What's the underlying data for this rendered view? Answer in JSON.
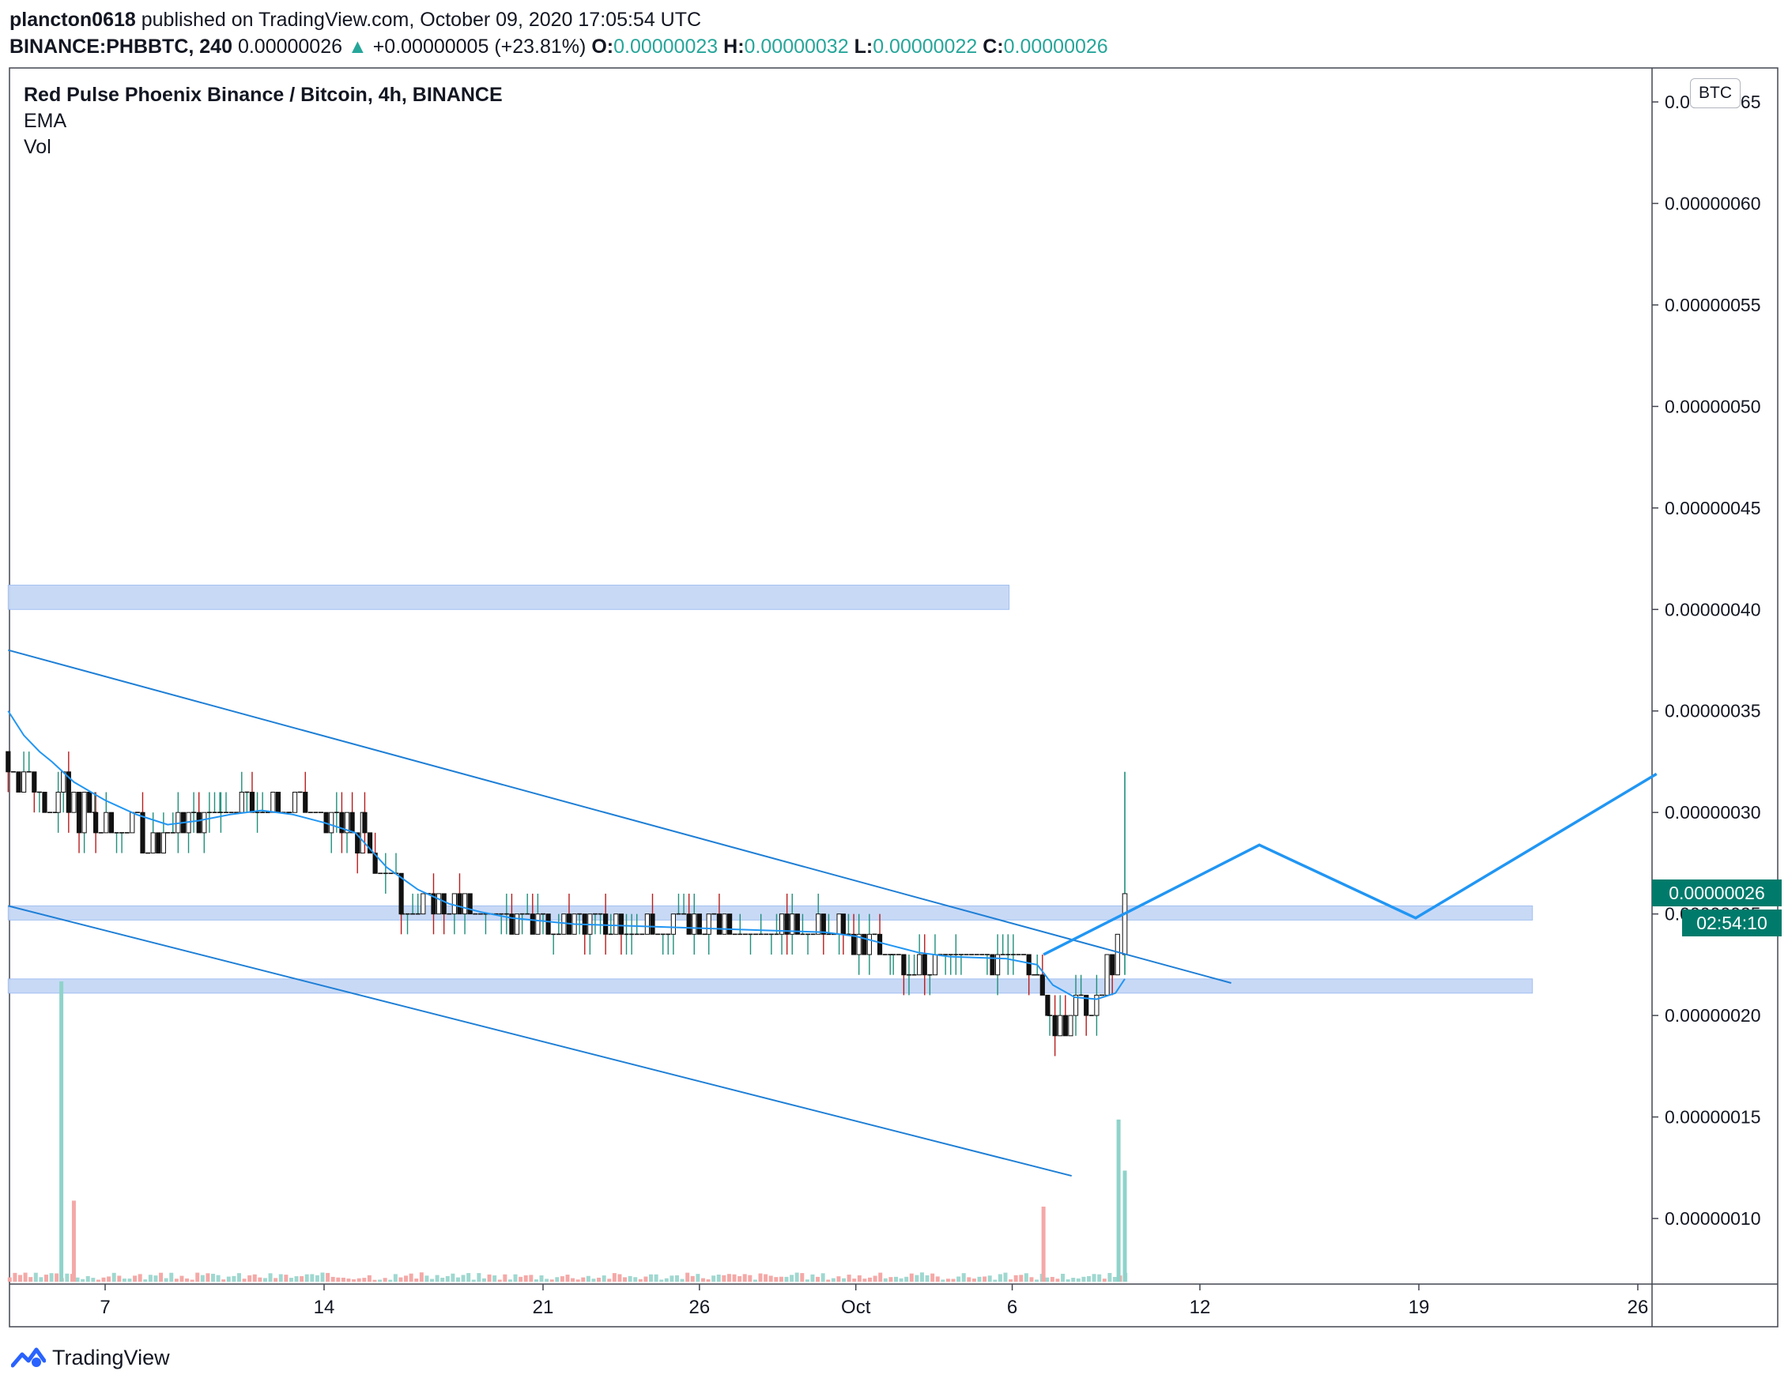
{
  "header": {
    "publisher": "plancton0618",
    "published_text": "published on TradingView.com, October 09, 2020 17:05:54 UTC",
    "symbol": "BINANCE:PHBBTC, 240",
    "last": "0.00000026",
    "change": "+0.00000005 (+23.81%)",
    "o_label": "O:",
    "o": "0.00000023",
    "h_label": "H:",
    "h": "0.00000032",
    "l_label": "L:",
    "l": "0.00000022",
    "c_label": "C:",
    "c": "0.00000026"
  },
  "legend": {
    "title": "Red Pulse Phoenix Binance / Bitcoin, 4h, BINANCE",
    "ema": "EMA",
    "vol": "Vol"
  },
  "currency": "BTC",
  "price_label": "0.00000026",
  "countdown": "02:54:10",
  "brand": "TradingView",
  "colors": {
    "up": "#26a69a",
    "down": "#ef5350",
    "ema": "#2196f3",
    "zone": "#c6d8f6",
    "trend": "#1e7fd6",
    "pricebox": "#007b6b"
  },
  "chart_data": {
    "type": "candlestick",
    "y_ticks": [
      "0.00000065",
      "0.00000060",
      "0.00000055",
      "0.00000050",
      "0.00000045",
      "0.00000040",
      "0.00000035",
      "0.00000030",
      "0.00000025",
      "0.00000020",
      "0.00000015",
      "0.00000010"
    ],
    "y_tick_values": [
      65,
      60,
      55,
      50,
      45,
      40,
      35,
      30,
      25,
      20,
      15,
      10
    ],
    "y_unit": "1e-8 BTC",
    "ylim": [
      7,
      66
    ],
    "x_ticks": [
      "7",
      "14",
      "21",
      "26",
      "Oct",
      "6",
      "12",
      "19",
      "26"
    ],
    "x_tick_days": [
      7,
      14,
      21,
      26,
      31,
      36,
      42,
      49,
      56
    ],
    "xlim": [
      3.9,
      56.6
    ],
    "zones": [
      {
        "from": 40,
        "to": 41.2,
        "x0": 3.9,
        "x1": 35.9
      },
      {
        "from": 24.7,
        "to": 25.4,
        "x0": 3.9,
        "x1": 56.6
      },
      {
        "from": 21.1,
        "to": 21.8,
        "x0": 3.9,
        "x1": 56.6
      }
    ],
    "trendlines": [
      {
        "x0": 3.9,
        "y0": 38,
        "x1": 43,
        "y1": 21.6
      },
      {
        "x0": 3.9,
        "y0": 25.4,
        "x1": 37.9,
        "y1": 12.1
      }
    ],
    "projection": {
      "x": [
        37,
        39.7,
        43.9,
        48.9,
        56.6
      ],
      "y": [
        23,
        25.1,
        28.4,
        24.8,
        31.9
      ]
    },
    "price_segments": [
      {
        "d0": 3.9,
        "d1": 5.5,
        "start": 32.5,
        "end": 30.5,
        "amp": 1.3
      },
      {
        "d0": 5.5,
        "d1": 6.7,
        "start": 30.5,
        "end": 29.5,
        "amp": 1.2
      },
      {
        "d0": 6.7,
        "d1": 9,
        "start": 29.5,
        "end": 28.8,
        "amp": 1.0
      },
      {
        "d0": 9,
        "d1": 10.7,
        "start": 28.8,
        "end": 30.2,
        "amp": 0.8
      },
      {
        "d0": 10.7,
        "d1": 12.9,
        "start": 30.2,
        "end": 30.4,
        "amp": 0.6
      },
      {
        "d0": 12.9,
        "d1": 15.3,
        "start": 30.4,
        "end": 28.8,
        "amp": 0.9
      },
      {
        "d0": 15.3,
        "d1": 16.5,
        "start": 28.8,
        "end": 25.5,
        "amp": 0.8
      },
      {
        "d0": 16.5,
        "d1": 21,
        "start": 25.5,
        "end": 24.6,
        "amp": 0.6
      },
      {
        "d0": 21,
        "d1": 26.3,
        "start": 24.6,
        "end": 24.3,
        "amp": 0.6
      },
      {
        "d0": 26.3,
        "d1": 30.6,
        "start": 24.3,
        "end": 24.0,
        "amp": 0.6
      },
      {
        "d0": 30.6,
        "d1": 32.2,
        "start": 24.0,
        "end": 22.8,
        "amp": 0.7
      },
      {
        "d0": 32.2,
        "d1": 36.8,
        "start": 22.8,
        "end": 22.6,
        "amp": 0.6
      },
      {
        "d0": 36.8,
        "d1": 37.2,
        "start": 22.6,
        "end": 19.5,
        "amp": 0.6
      },
      {
        "d0": 37.2,
        "d1": 38.7,
        "start": 19.5,
        "end": 20.5,
        "amp": 0.6
      },
      {
        "d0": 38.7,
        "d1": 39.4,
        "start": 20.5,
        "end": 24,
        "amp": 0.7
      }
    ],
    "last_candle": {
      "day": 39.6,
      "o": 23,
      "h": 32,
      "l": 22,
      "c": 26
    },
    "ema_points": [
      [
        3.9,
        35
      ],
      [
        4.4,
        33.8
      ],
      [
        4.9,
        33
      ],
      [
        5.3,
        32.5
      ],
      [
        6,
        31.5
      ],
      [
        7,
        30.6
      ],
      [
        8,
        29.9
      ],
      [
        9,
        29.4
      ],
      [
        10,
        29.6
      ],
      [
        11,
        29.9
      ],
      [
        12,
        30.1
      ],
      [
        13,
        29.9
      ],
      [
        14,
        29.5
      ],
      [
        15,
        29
      ],
      [
        16,
        27.3
      ],
      [
        17,
        26.2
      ],
      [
        18,
        25.5
      ],
      [
        19,
        25.1
      ],
      [
        20,
        24.8
      ],
      [
        22,
        24.5
      ],
      [
        24,
        24.4
      ],
      [
        26,
        24.3
      ],
      [
        28,
        24.2
      ],
      [
        30,
        24.1
      ],
      [
        31,
        23.9
      ],
      [
        32,
        23.5
      ],
      [
        33,
        23.1
      ],
      [
        34,
        22.9
      ],
      [
        35.8,
        22.8
      ],
      [
        36.8,
        22.5
      ],
      [
        37.3,
        21.5
      ],
      [
        38,
        20.9
      ],
      [
        38.7,
        20.8
      ],
      [
        39.3,
        21.1
      ],
      [
        39.6,
        21.8
      ]
    ],
    "volume_spikes": [
      {
        "day": 5.6,
        "vol": 1.0,
        "color": "up"
      },
      {
        "day": 6.0,
        "vol": 0.27,
        "color": "down"
      },
      {
        "day": 37,
        "vol": 0.25,
        "color": "down"
      },
      {
        "day": 39.4,
        "vol": 0.54,
        "color": "up"
      },
      {
        "day": 39.6,
        "vol": 0.37,
        "color": "up"
      }
    ]
  }
}
